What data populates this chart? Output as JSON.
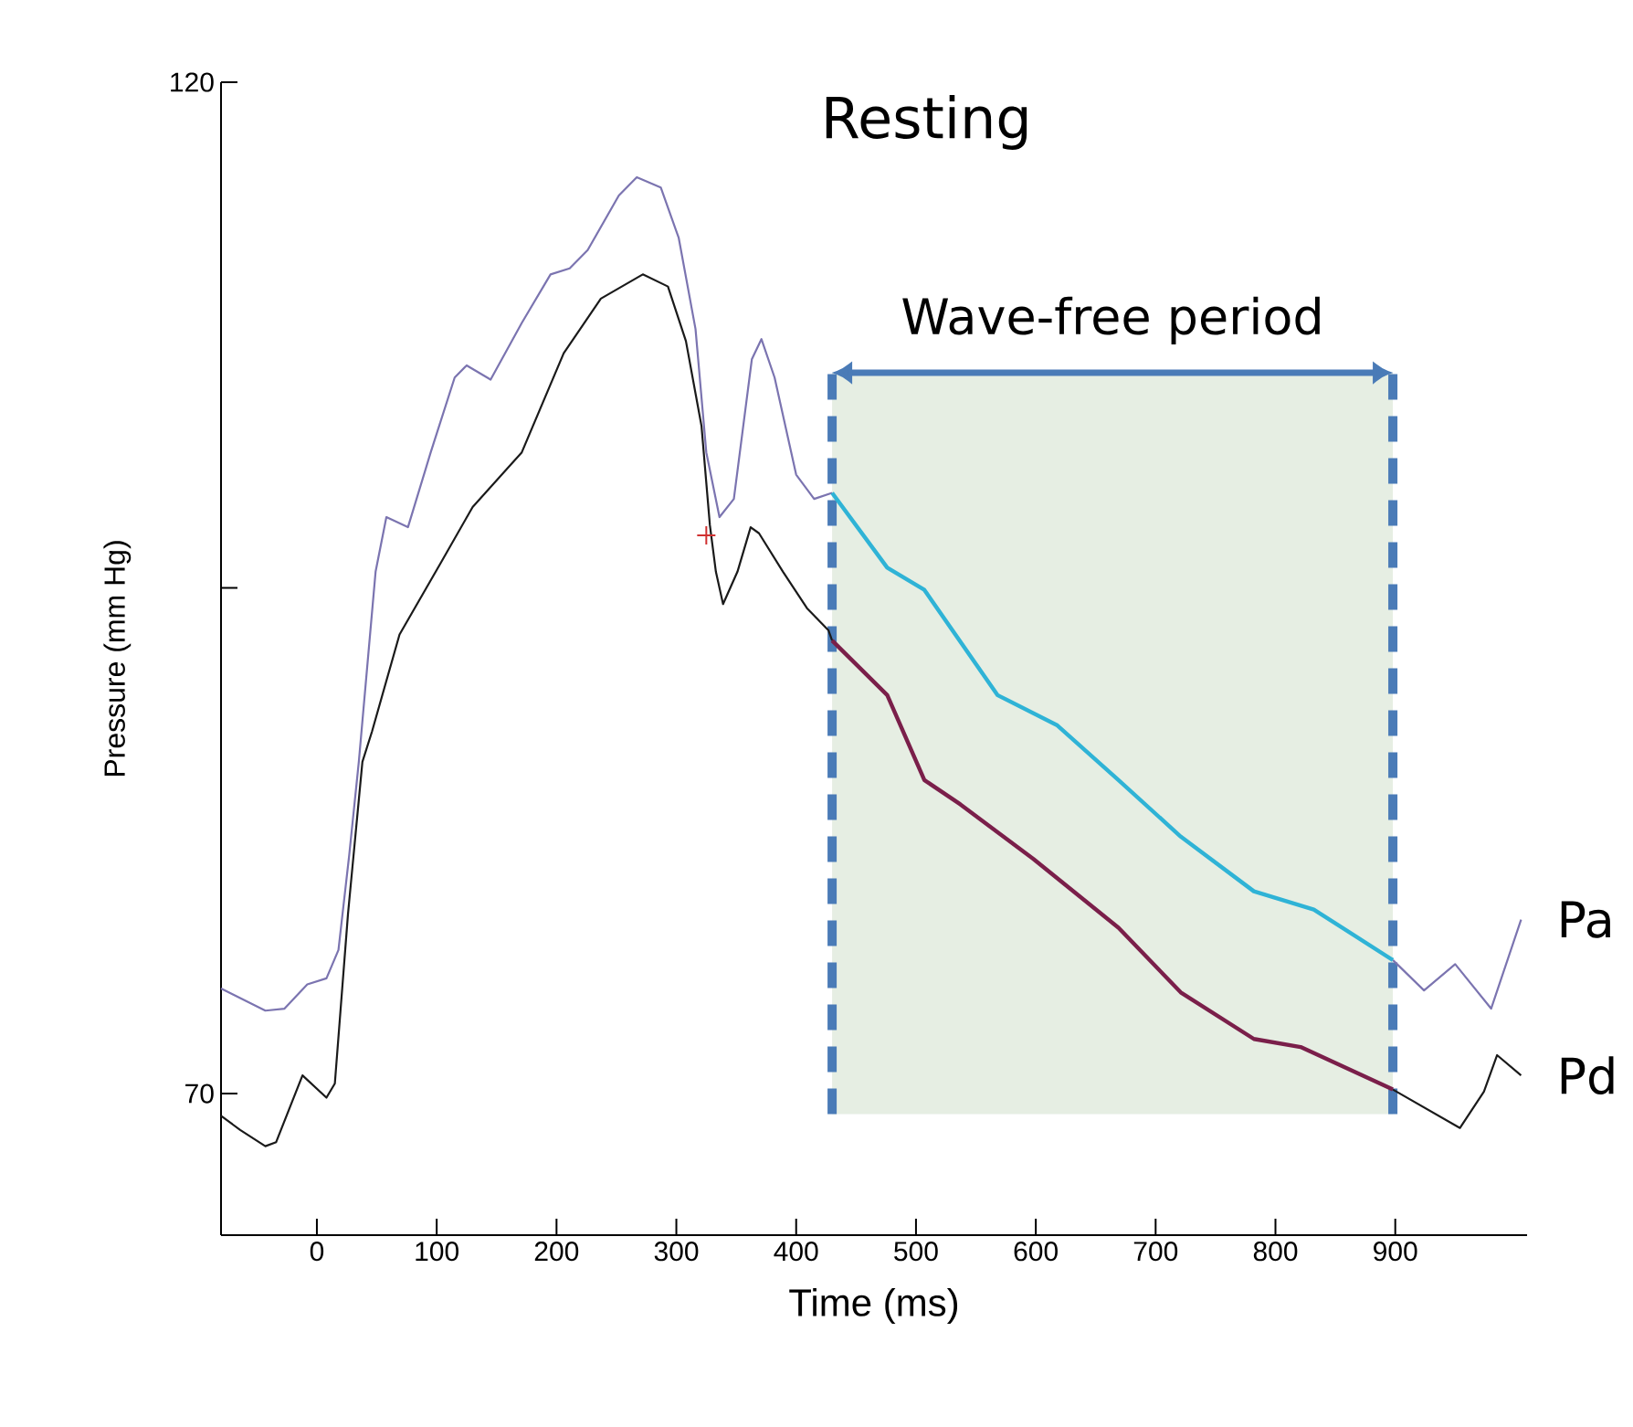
{
  "chart_data": {
    "type": "line",
    "title": "Resting",
    "xlabel": "Time (ms)",
    "ylabel": "Pressure (mm Hg)",
    "xlim": [
      -80,
      1010
    ],
    "ylim": [
      63,
      120
    ],
    "xticks": [
      0,
      100,
      200,
      300,
      400,
      500,
      600,
      700,
      800,
      900
    ],
    "yticks": [
      70,
      {
        "value": 95,
        "label": null
      },
      120
    ],
    "series": [
      {
        "name": "Pa",
        "color": "#7b74b0",
        "x": [
          -80,
          -43,
          -27,
          -8,
          8,
          18,
          27,
          35,
          49,
          58,
          76,
          95,
          115,
          125,
          145,
          171,
          195,
          211,
          226,
          252,
          267,
          287,
          302,
          316,
          325,
          336,
          348,
          363,
          371,
          382,
          400,
          415,
          430,
          660,
          898,
          924,
          950,
          980,
          1005
        ],
        "values": [
          75.2,
          74.1,
          74.2,
          75.4,
          75.7,
          77.1,
          81.8,
          86.4,
          95.8,
          98.5,
          98.0,
          101.7,
          105.4,
          106.0,
          105.3,
          108.1,
          110.5,
          110.8,
          111.7,
          114.4,
          115.3,
          114.8,
          112.3,
          107.8,
          101.7,
          98.5,
          99.4,
          106.3,
          107.3,
          105.4,
          100.6,
          99.4,
          99.7,
          null,
          76.6,
          75.1,
          76.4,
          74.2,
          78.6
        ]
      },
      {
        "name": "Pd",
        "color": "#1a1a1a",
        "x": [
          -80,
          -64,
          -43,
          -34,
          -12,
          8,
          15,
          26,
          38,
          46,
          69,
          104,
          130,
          171,
          206,
          237,
          272,
          293,
          308,
          321,
          328,
          333,
          339,
          351,
          362,
          369,
          389,
          409,
          427,
          430,
          660,
          898,
          954,
          974,
          985,
          1005
        ],
        "values": [
          68.9,
          68.2,
          67.4,
          67.6,
          70.9,
          69.8,
          70.5,
          78.9,
          86.4,
          87.9,
          92.7,
          96.3,
          99.0,
          101.7,
          106.6,
          109.3,
          110.5,
          109.9,
          107.2,
          103.0,
          98.1,
          95.8,
          94.2,
          95.8,
          98.0,
          97.7,
          95.8,
          94.0,
          92.9,
          92.4,
          null,
          70.2,
          68.3,
          70.1,
          71.9,
          70.9
        ]
      },
      {
        "color": "#2fb3d6",
        "x": [
          430,
          476,
          507,
          568,
          618,
          669,
          721,
          782,
          832,
          898
        ],
        "values": [
          99.7,
          96.0,
          94.9,
          89.7,
          88.2,
          85.5,
          82.7,
          80.0,
          79.1,
          76.6
        ]
      },
      {
        "color": "#7a1f4a",
        "x": [
          430,
          476,
          507,
          537,
          598,
          669,
          721,
          782,
          821,
          898
        ],
        "values": [
          92.4,
          89.7,
          85.5,
          84.3,
          81.6,
          78.2,
          75.0,
          72.7,
          72.3,
          70.2
        ]
      },
      {
        "type": "scatter",
        "marker": "cross",
        "color": "#d03030",
        "x": [
          325
        ],
        "values": [
          97.6
        ]
      }
    ],
    "bands": [
      {
        "axis": "x",
        "from": 430,
        "to": 898,
        "label": "Wave-free period",
        "color": "#e6eee3"
      }
    ],
    "ref_lines": [
      {
        "axis": "x",
        "value": 430,
        "color": "#4a7bb7",
        "line_style": "dashed"
      },
      {
        "axis": "x",
        "value": 898,
        "color": "#4a7bb7",
        "line_style": "dashed"
      }
    ]
  }
}
